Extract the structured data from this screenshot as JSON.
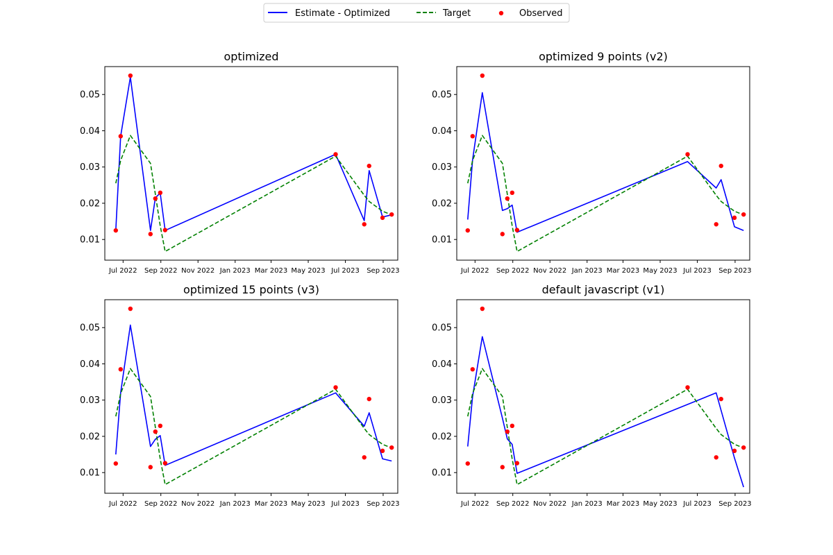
{
  "legend": {
    "entries": [
      {
        "label": "Estimate - Optimized",
        "color": "#0000ff",
        "style": "solid"
      },
      {
        "label": "Target",
        "color": "#008000",
        "style": "dashed"
      },
      {
        "label": "Observed",
        "color": "#ff0000",
        "style": "marker"
      }
    ]
  },
  "chart_data": [
    {
      "type": "line",
      "title": "optimized",
      "xlabel": "",
      "ylabel": "",
      "x_ticks": [
        "Jul 2022",
        "Sep 2022",
        "Nov 2022",
        "Jan 2023",
        "Mar 2023",
        "May 2023",
        "Jul 2023",
        "Sep 2023"
      ],
      "y_ticks": [
        "0.01",
        "0.02",
        "0.03",
        "0.04",
        "0.05"
      ],
      "xlim": [
        "2022-06-01",
        "2023-09-25"
      ],
      "ylim": [
        0.0043,
        0.0577
      ],
      "grid": false,
      "series": [
        {
          "name": "Estimate - Optimized",
          "style": "solid",
          "color": "#0000ff",
          "x": [
            "2022-06-19",
            "2022-06-27",
            "2022-07-13",
            "2022-08-15",
            "2022-08-23",
            "2022-08-31",
            "2022-09-08",
            "2023-06-15",
            "2023-08-01",
            "2023-08-09",
            "2023-08-31",
            "2023-09-15"
          ],
          "y": [
            0.0125,
            0.0385,
            0.0548,
            0.0125,
            0.0215,
            0.0228,
            0.0125,
            0.0335,
            0.0152,
            0.029,
            0.0162,
            0.0168
          ]
        },
        {
          "name": "Target",
          "style": "dashed",
          "color": "#008000",
          "x": [
            "2022-06-19",
            "2022-06-27",
            "2022-07-13",
            "2022-08-15",
            "2022-08-23",
            "2022-08-31",
            "2022-09-08",
            "2023-06-15",
            "2023-08-01",
            "2023-08-09",
            "2023-08-31",
            "2023-09-15"
          ],
          "y": [
            0.0255,
            0.0318,
            0.0387,
            0.031,
            0.0225,
            0.0138,
            0.0067,
            0.033,
            0.0222,
            0.0205,
            0.0178,
            0.0168
          ]
        },
        {
          "name": "Observed",
          "style": "marker",
          "color": "#ff0000",
          "x": [
            "2022-06-19",
            "2022-06-27",
            "2022-07-13",
            "2022-08-15",
            "2022-08-23",
            "2022-08-31",
            "2022-09-08",
            "2023-06-15",
            "2023-08-01",
            "2023-08-09",
            "2023-08-31",
            "2023-09-15"
          ],
          "y": [
            0.0125,
            0.0385,
            0.0552,
            0.0115,
            0.0213,
            0.0229,
            0.0126,
            0.0335,
            0.0142,
            0.0303,
            0.016,
            0.0169
          ]
        }
      ]
    },
    {
      "type": "line",
      "title": "optimized 9 points (v2)",
      "xlabel": "",
      "ylabel": "",
      "x_ticks": [
        "Jul 2022",
        "Sep 2022",
        "Nov 2022",
        "Jan 2023",
        "Mar 2023",
        "May 2023",
        "Jul 2023",
        "Sep 2023"
      ],
      "y_ticks": [
        "0.01",
        "0.02",
        "0.03",
        "0.04",
        "0.05"
      ],
      "xlim": [
        "2022-06-01",
        "2023-09-25"
      ],
      "ylim": [
        0.0043,
        0.0577
      ],
      "grid": false,
      "series": [
        {
          "name": "Estimate - Optimized",
          "style": "solid",
          "color": "#0000ff",
          "x": [
            "2022-06-19",
            "2022-06-27",
            "2022-07-13",
            "2022-08-15",
            "2022-08-23",
            "2022-08-31",
            "2022-09-08",
            "2023-06-15",
            "2023-08-01",
            "2023-08-09",
            "2023-08-31",
            "2023-09-15"
          ],
          "y": [
            0.0155,
            0.032,
            0.0505,
            0.018,
            0.0185,
            0.0195,
            0.012,
            0.0315,
            0.0242,
            0.0265,
            0.0135,
            0.0125
          ]
        },
        {
          "name": "Target",
          "style": "dashed",
          "color": "#008000",
          "x": [
            "2022-06-19",
            "2022-06-27",
            "2022-07-13",
            "2022-08-15",
            "2022-08-23",
            "2022-08-31",
            "2022-09-08",
            "2023-06-15",
            "2023-08-01",
            "2023-08-09",
            "2023-08-31",
            "2023-09-15"
          ],
          "y": [
            0.0255,
            0.0318,
            0.0387,
            0.031,
            0.0225,
            0.0138,
            0.0067,
            0.033,
            0.0222,
            0.0205,
            0.0178,
            0.0168
          ]
        },
        {
          "name": "Observed",
          "style": "marker",
          "color": "#ff0000",
          "x": [
            "2022-06-19",
            "2022-06-27",
            "2022-07-13",
            "2022-08-15",
            "2022-08-23",
            "2022-08-31",
            "2022-09-08",
            "2023-06-15",
            "2023-08-01",
            "2023-08-09",
            "2023-08-31",
            "2023-09-15"
          ],
          "y": [
            0.0125,
            0.0385,
            0.0552,
            0.0115,
            0.0213,
            0.0229,
            0.0126,
            0.0335,
            0.0142,
            0.0303,
            0.016,
            0.0169
          ]
        }
      ]
    },
    {
      "type": "line",
      "title": "optimized 15 points (v3)",
      "xlabel": "",
      "ylabel": "",
      "x_ticks": [
        "Jul 2022",
        "Sep 2022",
        "Nov 2022",
        "Jan 2023",
        "Mar 2023",
        "May 2023",
        "Jul 2023",
        "Sep 2023"
      ],
      "y_ticks": [
        "0.01",
        "0.02",
        "0.03",
        "0.04",
        "0.05"
      ],
      "xlim": [
        "2022-06-01",
        "2023-09-25"
      ],
      "ylim": [
        0.0043,
        0.0577
      ],
      "grid": false,
      "series": [
        {
          "name": "Estimate - Optimized",
          "style": "solid",
          "color": "#0000ff",
          "x": [
            "2022-06-19",
            "2022-06-27",
            "2022-07-13",
            "2022-08-15",
            "2022-08-23",
            "2022-08-31",
            "2022-09-08",
            "2023-06-15",
            "2023-08-01",
            "2023-08-09",
            "2023-08-31",
            "2023-09-15"
          ],
          "y": [
            0.015,
            0.032,
            0.0507,
            0.0172,
            0.0192,
            0.0202,
            0.012,
            0.032,
            0.0228,
            0.0265,
            0.0138,
            0.0132
          ]
        },
        {
          "name": "Target",
          "style": "dashed",
          "color": "#008000",
          "x": [
            "2022-06-19",
            "2022-06-27",
            "2022-07-13",
            "2022-08-15",
            "2022-08-23",
            "2022-08-31",
            "2022-09-08",
            "2023-06-15",
            "2023-08-01",
            "2023-08-09",
            "2023-08-31",
            "2023-09-15"
          ],
          "y": [
            0.0255,
            0.0318,
            0.0387,
            0.031,
            0.0225,
            0.0138,
            0.0067,
            0.033,
            0.0222,
            0.0205,
            0.0178,
            0.0168
          ]
        },
        {
          "name": "Observed",
          "style": "marker",
          "color": "#ff0000",
          "x": [
            "2022-06-19",
            "2022-06-27",
            "2022-07-13",
            "2022-08-15",
            "2022-08-23",
            "2022-08-31",
            "2022-09-08",
            "2023-06-15",
            "2023-08-01",
            "2023-08-09",
            "2023-08-31",
            "2023-09-15"
          ],
          "y": [
            0.0125,
            0.0385,
            0.0552,
            0.0115,
            0.0213,
            0.0229,
            0.0126,
            0.0335,
            0.0142,
            0.0303,
            0.016,
            0.0169
          ]
        }
      ]
    },
    {
      "type": "line",
      "title": "default javascript (v1)",
      "xlabel": "",
      "ylabel": "",
      "x_ticks": [
        "Jul 2022",
        "Sep 2022",
        "Nov 2022",
        "Jan 2023",
        "Mar 2023",
        "May 2023",
        "Jul 2023",
        "Sep 2023"
      ],
      "y_ticks": [
        "0.01",
        "0.02",
        "0.03",
        "0.04",
        "0.05"
      ],
      "xlim": [
        "2022-06-01",
        "2023-09-25"
      ],
      "ylim": [
        0.0043,
        0.0577
      ],
      "grid": false,
      "series": [
        {
          "name": "Estimate - Optimized",
          "style": "solid",
          "color": "#0000ff",
          "x": [
            "2022-06-19",
            "2022-06-27",
            "2022-07-13",
            "2022-08-15",
            "2022-08-23",
            "2022-08-31",
            "2022-09-08",
            "2023-08-01",
            "2023-08-31",
            "2023-09-15"
          ],
          "y": [
            0.0172,
            0.031,
            0.0475,
            0.025,
            0.0193,
            0.0178,
            0.0098,
            0.032,
            0.014,
            0.006
          ]
        },
        {
          "name": "Target",
          "style": "dashed",
          "color": "#008000",
          "x": [
            "2022-06-19",
            "2022-06-27",
            "2022-07-13",
            "2022-08-15",
            "2022-08-23",
            "2022-08-31",
            "2022-09-08",
            "2023-06-15",
            "2023-08-01",
            "2023-08-09",
            "2023-08-31",
            "2023-09-15"
          ],
          "y": [
            0.0255,
            0.0318,
            0.0387,
            0.031,
            0.0225,
            0.0138,
            0.0067,
            0.033,
            0.0222,
            0.0205,
            0.0178,
            0.0168
          ]
        },
        {
          "name": "Observed",
          "style": "marker",
          "color": "#ff0000",
          "x": [
            "2022-06-19",
            "2022-06-27",
            "2022-07-13",
            "2022-08-15",
            "2022-08-23",
            "2022-08-31",
            "2022-09-08",
            "2023-06-15",
            "2023-08-01",
            "2023-08-09",
            "2023-08-31",
            "2023-09-15"
          ],
          "y": [
            0.0125,
            0.0385,
            0.0552,
            0.0115,
            0.0213,
            0.0229,
            0.0126,
            0.0335,
            0.0142,
            0.0303,
            0.016,
            0.0169
          ]
        }
      ]
    }
  ]
}
